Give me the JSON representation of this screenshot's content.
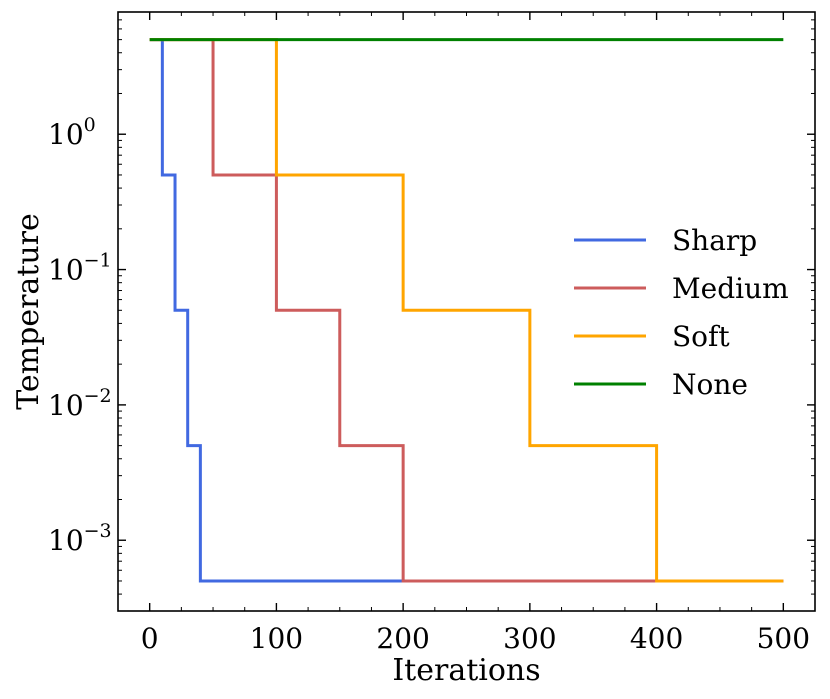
{
  "chart_data": {
    "type": "line",
    "step": true,
    "title": "",
    "xlabel": "Iterations",
    "ylabel": "Temperature",
    "xlim": [
      -25,
      525
    ],
    "ylim": [
      0.0003,
      8
    ],
    "yscale": "log",
    "x_ticks": [
      {
        "value": 0,
        "label": "0"
      },
      {
        "value": 100,
        "label": "100"
      },
      {
        "value": 200,
        "label": "200"
      },
      {
        "value": 300,
        "label": "300"
      },
      {
        "value": 400,
        "label": "400"
      },
      {
        "value": 500,
        "label": "500"
      }
    ],
    "y_ticks": [
      {
        "value": 1,
        "base": "10",
        "exp": "0"
      },
      {
        "value": 0.1,
        "base": "10",
        "exp": "−1"
      },
      {
        "value": 0.01,
        "base": "10",
        "exp": "−2"
      },
      {
        "value": 0.001,
        "base": "10",
        "exp": "−3"
      }
    ],
    "legend_position": "center-right",
    "series": [
      {
        "name": "Sharp",
        "color": "#4169e1",
        "x": [
          0,
          10,
          10,
          20,
          20,
          30,
          30,
          40,
          40,
          500
        ],
        "y": [
          5,
          5,
          0.5,
          0.5,
          0.05,
          0.05,
          0.005,
          0.005,
          0.0005,
          0.0005
        ]
      },
      {
        "name": "Medium",
        "color": "#cd5c5c",
        "x": [
          0,
          50,
          50,
          100,
          100,
          150,
          150,
          200,
          200,
          500
        ],
        "y": [
          5,
          5,
          0.5,
          0.5,
          0.05,
          0.05,
          0.005,
          0.005,
          0.0005,
          0.0005
        ]
      },
      {
        "name": "Soft",
        "color": "#ffa500",
        "x": [
          0,
          100,
          100,
          200,
          200,
          300,
          300,
          400,
          400,
          500
        ],
        "y": [
          5,
          5,
          0.5,
          0.5,
          0.05,
          0.05,
          0.005,
          0.005,
          0.0005,
          0.0005
        ]
      },
      {
        "name": "None",
        "color": "#008000",
        "x": [
          0,
          500
        ],
        "y": [
          5,
          5
        ]
      }
    ]
  }
}
